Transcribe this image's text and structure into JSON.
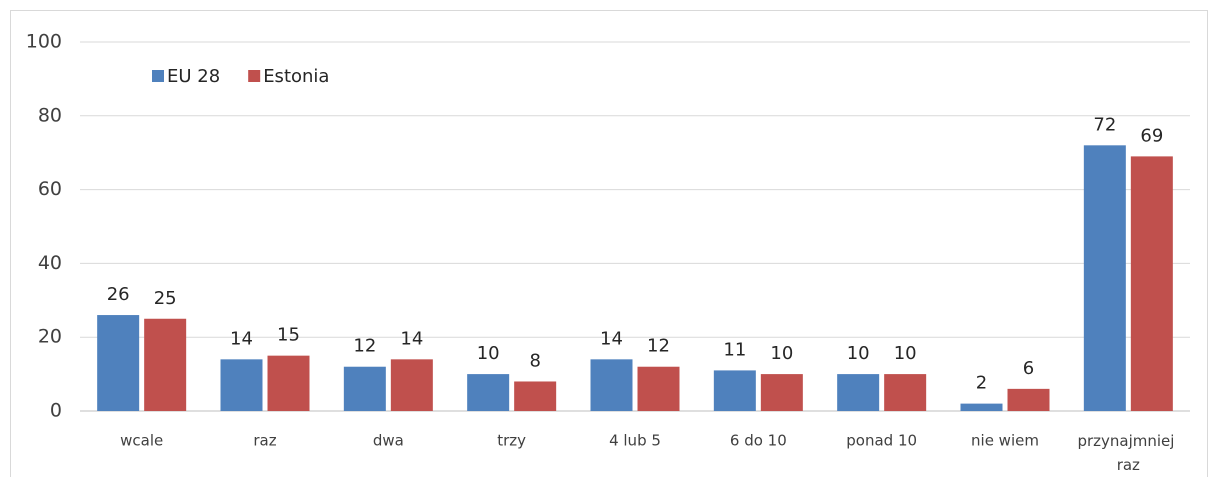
{
  "chart_data": {
    "type": "bar",
    "categories": [
      "wcale",
      "raz",
      "dwa",
      "trzy",
      "4 lub 5",
      "6 do 10",
      "ponad 10",
      "nie wiem",
      "przynajmniej raz"
    ],
    "series": [
      {
        "name": "EU 28",
        "color": "#4f81bd",
        "values": [
          26,
          14,
          12,
          10,
          14,
          11,
          10,
          2,
          72
        ]
      },
      {
        "name": "Estonia",
        "color": "#c0504d",
        "values": [
          25,
          15,
          14,
          8,
          12,
          10,
          10,
          6,
          69
        ]
      }
    ],
    "ylim": [
      0,
      100
    ],
    "yticks": [
      0,
      20,
      40,
      60,
      80,
      100
    ],
    "grid": true,
    "legend": "top-left"
  }
}
